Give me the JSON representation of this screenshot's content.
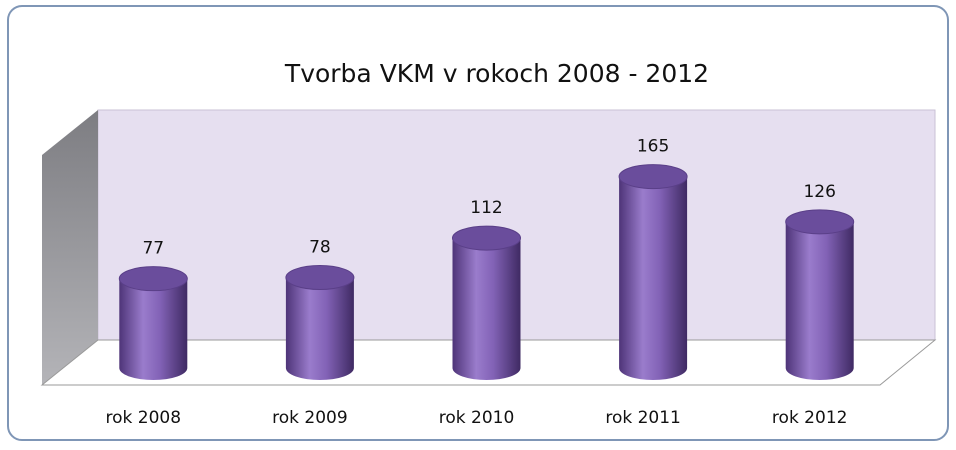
{
  "chart_data": {
    "type": "bar",
    "title": "Tvorba VKM v rokoch 2008 - 2012",
    "categories": [
      "rok 2008",
      "rok 2009",
      "rok 2010",
      "rok 2011",
      "rok 2012"
    ],
    "values": [
      77,
      78,
      112,
      165,
      126
    ],
    "color": "#8262b6"
  }
}
